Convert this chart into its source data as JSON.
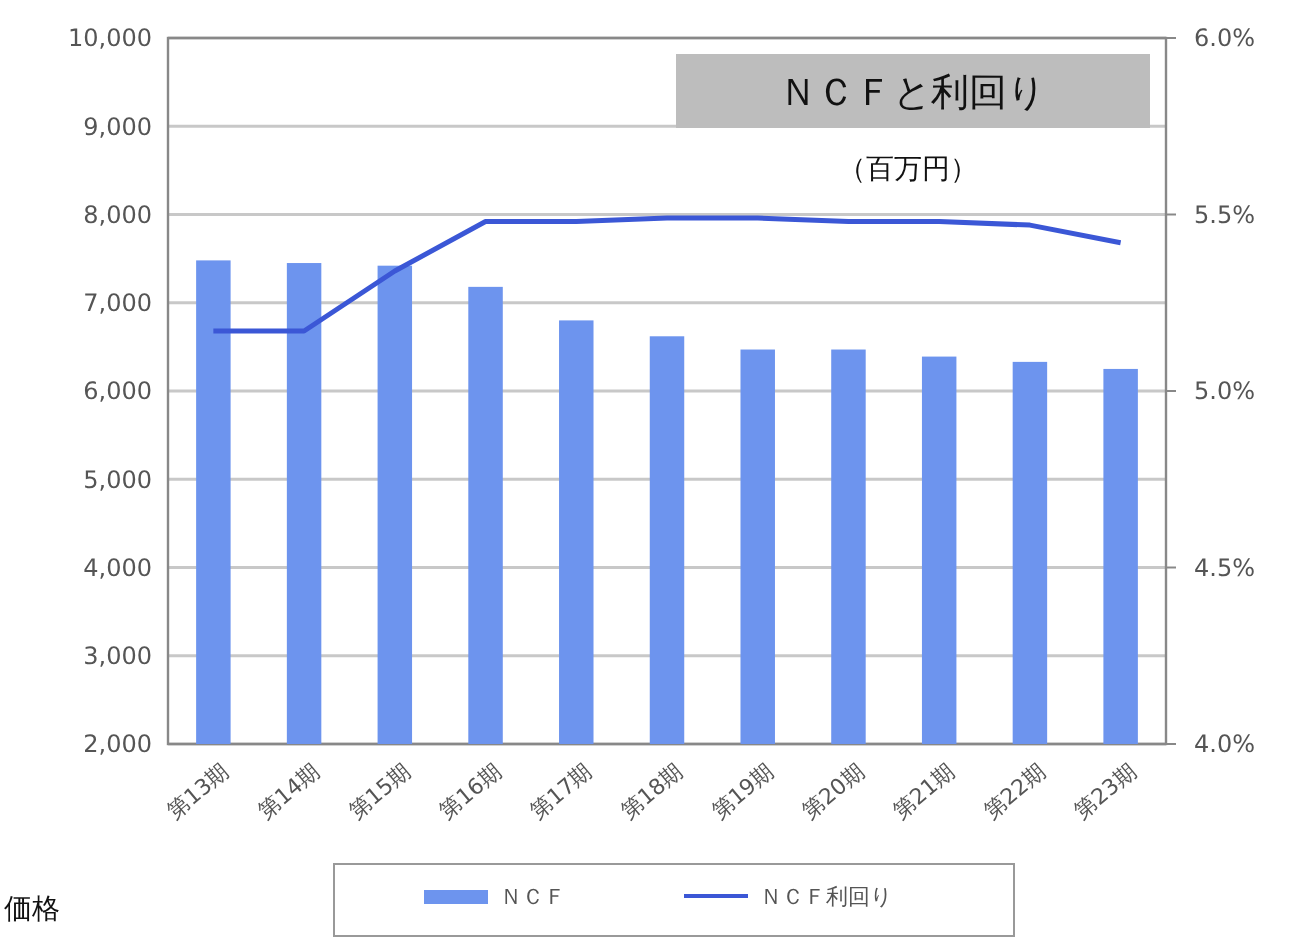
{
  "chart_data": {
    "type": "bar",
    "title": "ＮＣＦと利回り",
    "subtitle": "（百万円）",
    "annotations": [
      "価格"
    ],
    "categories": [
      "第13期",
      "第14期",
      "第15期",
      "第16期",
      "第17期",
      "第18期",
      "第19期",
      "第20期",
      "第21期",
      "第22期",
      "第23期"
    ],
    "series": [
      {
        "name": "ＮＣＦ",
        "color": "#6d94ee",
        "values": [
          7480,
          7450,
          7420,
          7180,
          6800,
          6620,
          6470,
          6470,
          6390,
          6330,
          6250
        ]
      },
      {
        "name": "ＮＣＦ利回り",
        "type": "line",
        "axis": "y2",
        "color": "#3b57d6",
        "values": [
          5.17,
          5.17,
          5.34,
          5.48,
          5.48,
          5.49,
          5.49,
          5.48,
          5.48,
          5.47,
          5.42
        ]
      }
    ],
    "ylim": [
      2000,
      10000
    ],
    "yticks": [
      {
        "value": 2000,
        "label": "2,000"
      },
      {
        "value": 3000,
        "label": "3,000"
      },
      {
        "value": 4000,
        "label": "4,000"
      },
      {
        "value": 5000,
        "label": "5,000"
      },
      {
        "value": 6000,
        "label": "6,000"
      },
      {
        "value": 7000,
        "label": "7,000"
      },
      {
        "value": 8000,
        "label": "8,000"
      },
      {
        "value": 9000,
        "label": "9,000"
      },
      {
        "value": 10000,
        "label": "10,000"
      }
    ],
    "y2lim": [
      4.0,
      6.0
    ],
    "y2ticks": [
      {
        "value": 4.0,
        "label": "4.0%"
      },
      {
        "value": 4.5,
        "label": "4.5%"
      },
      {
        "value": 5.0,
        "label": "5.0%"
      },
      {
        "value": 5.5,
        "label": "5.5%"
      },
      {
        "value": 6.0,
        "label": "6.0%"
      }
    ],
    "grid": "y",
    "legend": "bottom",
    "marker": "none",
    "line_style": "solid"
  }
}
